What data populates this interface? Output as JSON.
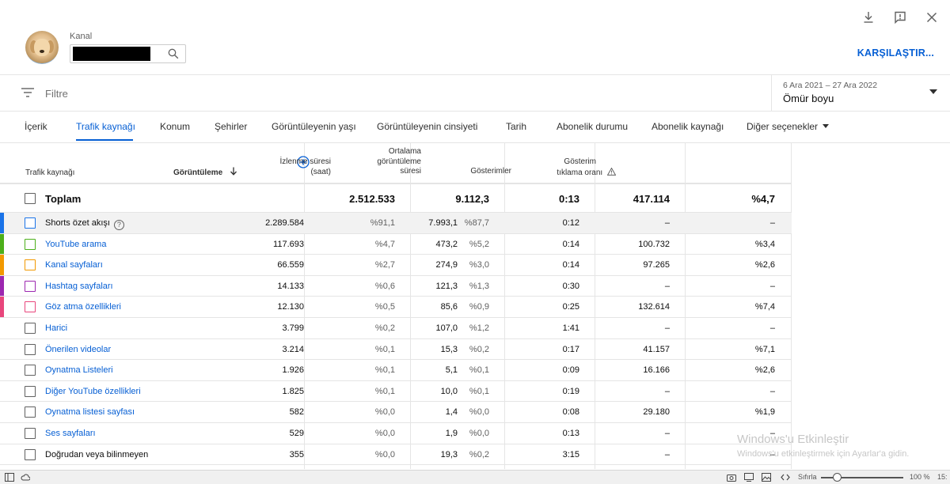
{
  "header": {
    "channel_label": "Kanal",
    "compare_label": "KARŞILAŞTIR..."
  },
  "filter": {
    "placeholder": "Filtre"
  },
  "date": {
    "range": "6 Ara 2021 – 27 Ara 2022",
    "value": "Ömür boyu"
  },
  "tabs": [
    {
      "label": "İçerik"
    },
    {
      "label": "Trafik kaynağı"
    },
    {
      "label": "Konum"
    },
    {
      "label": "Şehirler"
    },
    {
      "label": "Görüntüleyenin yaşı"
    },
    {
      "label": "Görüntüleyenin cinsiyeti"
    },
    {
      "label": "Tarih"
    },
    {
      "label": "Abonelik durumu"
    },
    {
      "label": "Abonelik kaynağı"
    },
    {
      "label": "Diğer seçenekler"
    }
  ],
  "table": {
    "headers": {
      "source": "Trafik kaynağı",
      "views": "Görüntüleme",
      "watch_l1": "İzlenme süresi",
      "watch_l2": "(saat)",
      "avg_l1": "Ortalama",
      "avg_l2": "görüntüleme",
      "avg_l3": "süresi",
      "impressions": "Gösterimler",
      "ctr_l1": "Gösterim",
      "ctr_l2": "tıklama oranı"
    },
    "total": {
      "label": "Toplam",
      "views": "2.512.533",
      "watch": "9.112,3",
      "avg": "0:13",
      "impressions": "417.114",
      "ctr": "%4,7"
    },
    "rows": [
      {
        "source": "Shorts özet akışı",
        "views": "2.289.584",
        "views_pct": "%91,1",
        "watch": "7.993,1",
        "watch_pct": "%87,7",
        "avg": "0:12",
        "impressions": "–",
        "ctr": "–",
        "color": "#1a73e8"
      },
      {
        "source": "YouTube arama",
        "views": "117.693",
        "views_pct": "%4,7",
        "watch": "473,2",
        "watch_pct": "%5,2",
        "avg": "0:14",
        "impressions": "100.732",
        "ctr": "%3,4",
        "color": "#4caf1a"
      },
      {
        "source": "Kanal sayfaları",
        "views": "66.559",
        "views_pct": "%2,7",
        "watch": "274,9",
        "watch_pct": "%3,0",
        "avg": "0:14",
        "impressions": "97.265",
        "ctr": "%2,6",
        "color": "#f29900"
      },
      {
        "source": "Hashtag sayfaları",
        "views": "14.133",
        "views_pct": "%0,6",
        "watch": "121,3",
        "watch_pct": "%1,3",
        "avg": "0:30",
        "impressions": "–",
        "ctr": "–",
        "color": "#9c27b0"
      },
      {
        "source": "Göz atma özellikleri",
        "views": "12.130",
        "views_pct": "%0,5",
        "watch": "85,6",
        "watch_pct": "%0,9",
        "avg": "0:25",
        "impressions": "132.614",
        "ctr": "%7,4",
        "color": "#e8467c"
      },
      {
        "source": "Harici",
        "views": "3.799",
        "views_pct": "%0,2",
        "watch": "107,0",
        "watch_pct": "%1,2",
        "avg": "1:41",
        "impressions": "–",
        "ctr": "–",
        "color": ""
      },
      {
        "source": "Önerilen videolar",
        "views": "3.214",
        "views_pct": "%0,1",
        "watch": "15,3",
        "watch_pct": "%0,2",
        "avg": "0:17",
        "impressions": "41.157",
        "ctr": "%7,1",
        "color": ""
      },
      {
        "source": "Oynatma Listeleri",
        "views": "1.926",
        "views_pct": "%0,1",
        "watch": "5,1",
        "watch_pct": "%0,1",
        "avg": "0:09",
        "impressions": "16.166",
        "ctr": "%2,6",
        "color": ""
      },
      {
        "source": "Diğer YouTube özellikleri",
        "views": "1.825",
        "views_pct": "%0,1",
        "watch": "10,0",
        "watch_pct": "%0,1",
        "avg": "0:19",
        "impressions": "–",
        "ctr": "–",
        "color": ""
      },
      {
        "source": "Oynatma listesi sayfası",
        "views": "582",
        "views_pct": "%0,0",
        "watch": "1,4",
        "watch_pct": "%0,0",
        "avg": "0:08",
        "impressions": "29.180",
        "ctr": "%1,9",
        "color": ""
      },
      {
        "source": "Ses sayfaları",
        "views": "529",
        "views_pct": "%0,0",
        "watch": "1,9",
        "watch_pct": "%0,0",
        "avg": "0:13",
        "impressions": "–",
        "ctr": "–",
        "color": ""
      },
      {
        "source": "Doğrudan veya bilinmeyen",
        "views": "355",
        "views_pct": "%0,0",
        "watch": "19,3",
        "watch_pct": "%0,2",
        "avg": "3:15",
        "impressions": "–",
        "ctr": "–",
        "color": ""
      }
    ]
  },
  "watermark": {
    "line1": "Windows'u Etkinleştir",
    "line2": "Windows'u etkinleştirmek için Ayarlar'a gidin."
  },
  "statusbar": {
    "reset": "Sıfırla",
    "zoom": "100 %",
    "time": "15:"
  },
  "colors": {
    "accent": "#065fd4"
  }
}
